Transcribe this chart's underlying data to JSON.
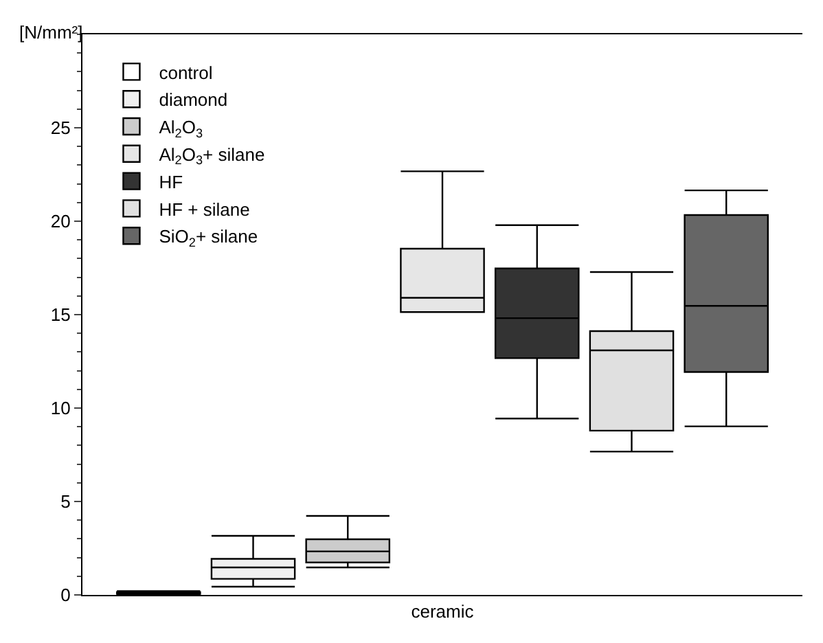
{
  "chart_data": {
    "type": "box",
    "ylabel": "[N/mm²]",
    "categories": [
      "ceramic"
    ],
    "ylim": [
      0,
      30
    ],
    "yticks": [
      0,
      5,
      10,
      15,
      20,
      25
    ],
    "legend": "top left",
    "series": [
      {
        "name": "control",
        "color": "#ffffff",
        "boxes": [
          {
            "low": 0,
            "q1": 0.05,
            "median": 0.1,
            "q3": 0.15,
            "high": 0.2
          }
        ]
      },
      {
        "name": "diamond",
        "color": "#f0f0f0",
        "boxes": [
          {
            "low": 0.44,
            "q1": 0.86,
            "median": 1.47,
            "q3": 1.93,
            "high": 3.16
          }
        ]
      },
      {
        "name": "Al$_{2}$O$_{3}$",
        "color": "#cccccc",
        "boxes": [
          {
            "low": 1.47,
            "q1": 1.74,
            "median": 2.33,
            "q3": 2.98,
            "high": 4.23
          }
        ]
      },
      {
        "name": "Al$_{2}$O$_{3}$+ silane",
        "color": "#e6e6e6",
        "boxes": [
          {
            "low": 15.14,
            "q1": 15.14,
            "median": 15.9,
            "q3": 18.53,
            "high": 22.67
          }
        ]
      },
      {
        "name": "HF",
        "color": "#333333",
        "boxes": [
          {
            "low": 9.44,
            "q1": 12.67,
            "median": 14.81,
            "q3": 17.47,
            "high": 19.79
          }
        ]
      },
      {
        "name": "HF + silane",
        "color": "#e0e0e0",
        "boxes": [
          {
            "low": 7.67,
            "q1": 8.79,
            "median": 13.09,
            "q3": 14.12,
            "high": 17.28
          }
        ]
      },
      {
        "name": "SiO$_{2}$+ silane",
        "color": "#666666",
        "boxes": [
          {
            "low": 9.02,
            "q1": 11.93,
            "median": 15.47,
            "q3": 20.33,
            "high": 21.65
          }
        ]
      }
    ]
  }
}
